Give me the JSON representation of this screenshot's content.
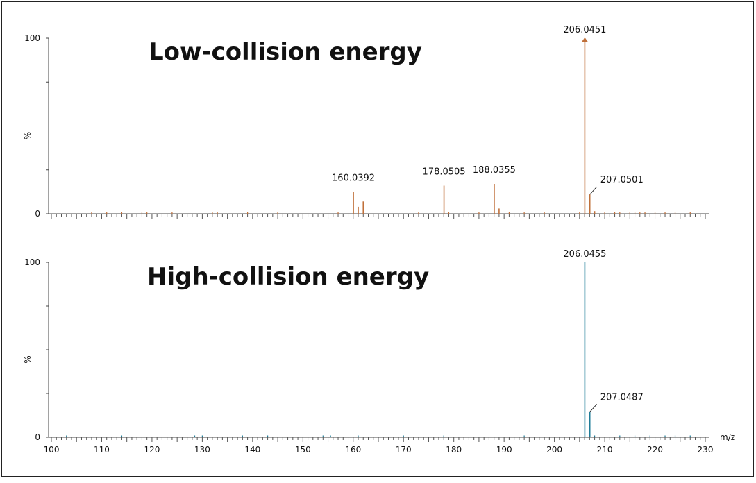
{
  "chart_data": [
    {
      "type": "bar",
      "title": "Low-collision energy",
      "xlabel": "m/z",
      "ylabel": "%",
      "xlim": [
        100,
        230
      ],
      "ylim": [
        0,
        100
      ],
      "ytick_labels": [
        "0",
        "100"
      ],
      "color": "#c0703a",
      "peaks": [
        {
          "mz": 160.0392,
          "intensity": 12.5,
          "label": "160.0392"
        },
        {
          "mz": 161.0,
          "intensity": 4
        },
        {
          "mz": 162.0,
          "intensity": 7
        },
        {
          "mz": 178.0505,
          "intensity": 16,
          "label": "178.0505"
        },
        {
          "mz": 188.0355,
          "intensity": 17,
          "label": "188.0355"
        },
        {
          "mz": 189.0,
          "intensity": 3
        },
        {
          "mz": 206.0451,
          "intensity": 100,
          "label": "206.0451"
        },
        {
          "mz": 207.0501,
          "intensity": 11,
          "label": "207.0501"
        },
        {
          "mz": 208.0,
          "intensity": 1.5
        }
      ],
      "noise": [
        108,
        111,
        114,
        118,
        119,
        124,
        132,
        133,
        139,
        145,
        157,
        173,
        179,
        185,
        191,
        194,
        198,
        205,
        210,
        212,
        213,
        215,
        216,
        217,
        218,
        220,
        222,
        224,
        227
      ]
    },
    {
      "type": "bar",
      "title": "High-collision energy",
      "xlabel": "m/z",
      "ylabel": "%",
      "xlim": [
        100,
        230
      ],
      "ylim": [
        0,
        100
      ],
      "ytick_labels": [
        "0",
        "100"
      ],
      "xtick_labels": [
        "100",
        "110",
        "120",
        "130",
        "140",
        "150",
        "160",
        "170",
        "180",
        "190",
        "200",
        "210",
        "220",
        "230"
      ],
      "color": "#1f7d98",
      "peaks": [
        {
          "mz": 206.0455,
          "intensity": 100,
          "label": "206.0455"
        },
        {
          "mz": 207.0487,
          "intensity": 14.5,
          "label": "207.0487"
        }
      ],
      "noise": [
        103,
        114,
        128.5,
        130,
        138,
        143,
        154,
        155.5,
        161,
        170,
        178,
        194,
        208,
        213,
        216,
        219,
        222,
        224,
        227
      ]
    }
  ]
}
